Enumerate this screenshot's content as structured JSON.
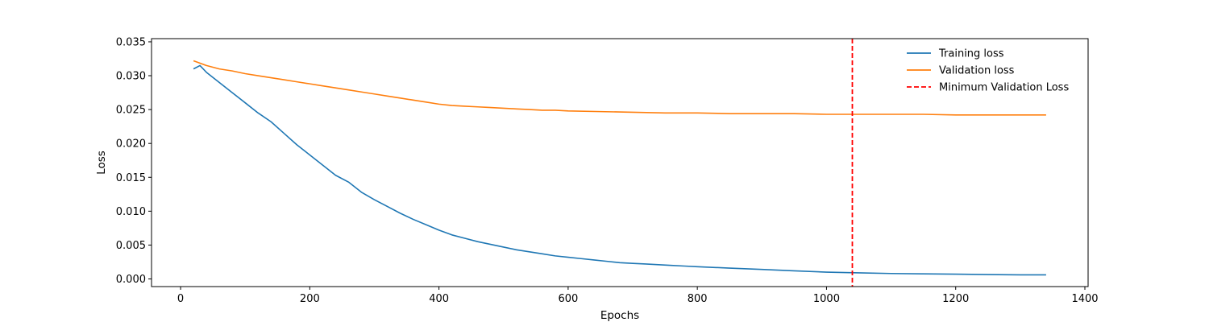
{
  "chart_data": {
    "type": "line",
    "title": "",
    "xlabel": "Epochs",
    "ylabel": "Loss",
    "xlim": [
      -45,
      1405
    ],
    "ylim": [
      -0.00113,
      0.03547
    ],
    "xticks": [
      0,
      200,
      400,
      600,
      800,
      1000,
      1200,
      1400
    ],
    "xtick_labels": [
      "0",
      "200",
      "400",
      "600",
      "800",
      "1000",
      "1200",
      "1400"
    ],
    "yticks": [
      0.0,
      0.005,
      0.01,
      0.015,
      0.02,
      0.025,
      0.03,
      0.035
    ],
    "ytick_labels": [
      "0.000",
      "0.005",
      "0.010",
      "0.015",
      "0.020",
      "0.025",
      "0.030",
      "0.035"
    ],
    "grid": false,
    "legend_position": "top-right",
    "series": [
      {
        "name": "Training loss",
        "color": "#1f77b4",
        "style": "solid",
        "x": [
          20,
          30,
          40,
          60,
          80,
          100,
          120,
          140,
          160,
          180,
          200,
          220,
          240,
          260,
          280,
          300,
          320,
          340,
          360,
          380,
          400,
          420,
          440,
          460,
          480,
          500,
          520,
          540,
          560,
          580,
          600,
          620,
          640,
          660,
          680,
          700,
          720,
          740,
          760,
          780,
          800,
          850,
          900,
          950,
          1000,
          1050,
          1100,
          1150,
          1200,
          1250,
          1300,
          1340
        ],
        "y": [
          0.031,
          0.0315,
          0.0305,
          0.029,
          0.0275,
          0.026,
          0.0245,
          0.0232,
          0.0215,
          0.0198,
          0.0183,
          0.0168,
          0.0153,
          0.0143,
          0.0128,
          0.0117,
          0.0107,
          0.0097,
          0.0088,
          0.008,
          0.0072,
          0.0065,
          0.006,
          0.0055,
          0.0051,
          0.0047,
          0.0043,
          0.004,
          0.0037,
          0.0034,
          0.0032,
          0.003,
          0.0028,
          0.0026,
          0.0024,
          0.0023,
          0.0022,
          0.0021,
          0.002,
          0.0019,
          0.0018,
          0.0016,
          0.0014,
          0.0012,
          0.001,
          0.0009,
          0.0008,
          0.00075,
          0.0007,
          0.00065,
          0.0006,
          0.0006
        ]
      },
      {
        "name": "Validation loss",
        "color": "#ff7f0e",
        "style": "solid",
        "x": [
          20,
          40,
          60,
          80,
          100,
          120,
          140,
          160,
          180,
          200,
          220,
          240,
          260,
          280,
          300,
          320,
          340,
          360,
          380,
          400,
          420,
          440,
          460,
          480,
          500,
          520,
          540,
          560,
          580,
          600,
          650,
          700,
          750,
          800,
          850,
          900,
          950,
          1000,
          1050,
          1100,
          1150,
          1200,
          1250,
          1300,
          1340
        ],
        "y": [
          0.0322,
          0.0315,
          0.031,
          0.0307,
          0.0303,
          0.03,
          0.0297,
          0.0294,
          0.0291,
          0.0288,
          0.0285,
          0.0282,
          0.0279,
          0.0276,
          0.0273,
          0.027,
          0.0267,
          0.0264,
          0.0261,
          0.0258,
          0.0256,
          0.0255,
          0.0254,
          0.0253,
          0.0252,
          0.0251,
          0.025,
          0.0249,
          0.0249,
          0.0248,
          0.0247,
          0.0246,
          0.0245,
          0.0245,
          0.0244,
          0.0244,
          0.0244,
          0.0243,
          0.0243,
          0.0243,
          0.0243,
          0.0242,
          0.0242,
          0.0242,
          0.0242
        ]
      }
    ],
    "vlines": [
      {
        "name": "Minimum Validation Loss",
        "x": 1040,
        "color": "#ff0000",
        "style": "dashed"
      }
    ]
  }
}
